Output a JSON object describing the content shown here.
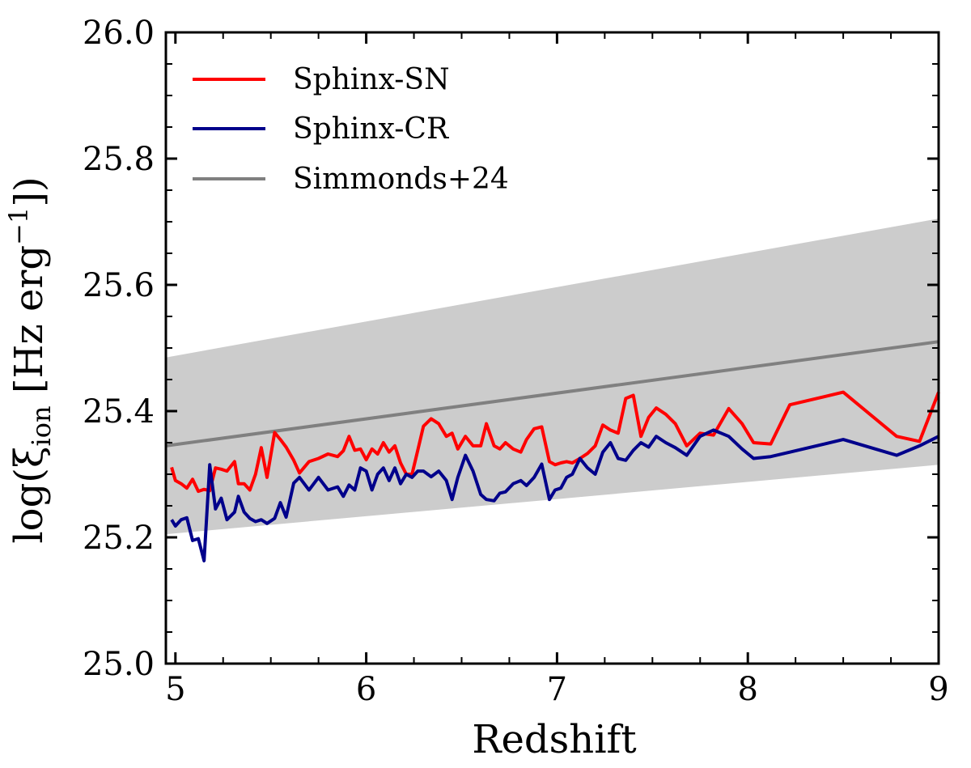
{
  "chart_data": {
    "type": "line",
    "xlabel": "Redshift",
    "ylabel": "log(ξion [Hz erg⁻¹])",
    "ylabel_parts": {
      "prefix": "log(ξ",
      "sub": "ion",
      "mid": " [Hz erg",
      "sup": "−1",
      "suffix": "])"
    },
    "xlim": [
      4.95,
      9.0
    ],
    "ylim": [
      25.0,
      26.0
    ],
    "xticks": [
      5,
      6,
      7,
      8,
      9
    ],
    "yticks": [
      25.0,
      25.2,
      25.4,
      25.6,
      25.8,
      26.0
    ],
    "xtick_labels": [
      "5",
      "6",
      "7",
      "8",
      "9"
    ],
    "ytick_labels": [
      "25.0",
      "25.2",
      "25.4",
      "25.6",
      "25.8",
      "26.0"
    ],
    "legend_position": "top-left",
    "series": [
      {
        "name": "Sphinx-SN",
        "color": "#ff0000",
        "x": [
          4.98,
          5.0,
          5.03,
          5.06,
          5.09,
          5.12,
          5.15,
          5.18,
          5.21,
          5.24,
          5.27,
          5.31,
          5.33,
          5.36,
          5.39,
          5.42,
          5.45,
          5.48,
          5.52,
          5.55,
          5.58,
          5.62,
          5.65,
          5.7,
          5.75,
          5.8,
          5.85,
          5.88,
          5.91,
          5.94,
          5.97,
          6.0,
          6.03,
          6.06,
          6.09,
          6.12,
          6.15,
          6.18,
          6.21,
          6.24,
          6.27,
          6.3,
          6.34,
          6.38,
          6.42,
          6.45,
          6.48,
          6.52,
          6.56,
          6.6,
          6.63,
          6.67,
          6.7,
          6.73,
          6.77,
          6.81,
          6.84,
          6.88,
          6.92,
          6.96,
          6.99,
          7.02,
          7.05,
          7.08,
          7.12,
          7.16,
          7.2,
          7.24,
          7.28,
          7.32,
          7.36,
          7.4,
          7.44,
          7.48,
          7.52,
          7.57,
          7.62,
          7.68,
          7.75,
          7.82,
          7.9,
          7.97,
          8.03,
          8.12,
          8.22,
          8.5,
          8.78,
          8.9,
          9.0
        ],
        "y": [
          25.311,
          25.29,
          25.285,
          25.278,
          25.292,
          25.273,
          25.276,
          25.274,
          25.31,
          25.308,
          25.305,
          25.32,
          25.285,
          25.285,
          25.275,
          25.3,
          25.342,
          25.295,
          25.366,
          25.355,
          25.343,
          25.322,
          25.302,
          25.32,
          25.325,
          25.332,
          25.328,
          25.337,
          25.36,
          25.338,
          25.34,
          25.323,
          25.34,
          25.332,
          25.35,
          25.335,
          25.345,
          25.318,
          25.3,
          25.3,
          25.338,
          25.376,
          25.388,
          25.38,
          25.36,
          25.365,
          25.34,
          25.36,
          25.345,
          25.345,
          25.38,
          25.345,
          25.34,
          25.35,
          25.34,
          25.335,
          25.355,
          25.372,
          25.375,
          25.32,
          25.315,
          25.318,
          25.32,
          25.318,
          25.325,
          25.333,
          25.345,
          25.378,
          25.37,
          25.365,
          25.42,
          25.425,
          25.36,
          25.39,
          25.405,
          25.395,
          25.38,
          25.345,
          25.365,
          25.362,
          25.404,
          25.38,
          25.35,
          25.348,
          25.41,
          25.43,
          25.36,
          25.352,
          25.43
        ]
      },
      {
        "name": "Sphinx-CR",
        "color": "#00008b",
        "x": [
          4.98,
          5.0,
          5.03,
          5.06,
          5.09,
          5.12,
          5.15,
          5.18,
          5.21,
          5.24,
          5.27,
          5.31,
          5.33,
          5.36,
          5.39,
          5.42,
          5.45,
          5.48,
          5.52,
          5.55,
          5.58,
          5.62,
          5.65,
          5.7,
          5.75,
          5.8,
          5.85,
          5.88,
          5.91,
          5.94,
          5.97,
          6.0,
          6.03,
          6.06,
          6.09,
          6.12,
          6.15,
          6.18,
          6.21,
          6.24,
          6.27,
          6.3,
          6.34,
          6.38,
          6.42,
          6.45,
          6.48,
          6.52,
          6.56,
          6.6,
          6.63,
          6.67,
          6.7,
          6.73,
          6.77,
          6.81,
          6.84,
          6.88,
          6.92,
          6.96,
          6.99,
          7.02,
          7.05,
          7.08,
          7.12,
          7.16,
          7.2,
          7.24,
          7.28,
          7.32,
          7.36,
          7.4,
          7.44,
          7.48,
          7.52,
          7.57,
          7.62,
          7.68,
          7.75,
          7.82,
          7.9,
          7.97,
          8.03,
          8.12,
          8.22,
          8.5,
          8.78,
          8.9,
          9.0
        ],
        "y": [
          25.228,
          25.218,
          25.228,
          25.231,
          25.195,
          25.198,
          25.163,
          25.315,
          25.245,
          25.262,
          25.228,
          25.24,
          25.265,
          25.24,
          25.23,
          25.225,
          25.228,
          25.222,
          25.23,
          25.255,
          25.232,
          25.286,
          25.295,
          25.275,
          25.295,
          25.275,
          25.28,
          25.265,
          25.283,
          25.275,
          25.31,
          25.305,
          25.275,
          25.3,
          25.31,
          25.29,
          25.31,
          25.285,
          25.3,
          25.295,
          25.305,
          25.305,
          25.296,
          25.305,
          25.29,
          25.26,
          25.295,
          25.33,
          25.305,
          25.268,
          25.26,
          25.258,
          25.27,
          25.272,
          25.285,
          25.29,
          25.282,
          25.295,
          25.316,
          25.26,
          25.275,
          25.278,
          25.295,
          25.3,
          25.325,
          25.31,
          25.3,
          25.335,
          25.35,
          25.325,
          25.322,
          25.338,
          25.35,
          25.343,
          25.36,
          25.35,
          25.342,
          25.33,
          25.36,
          25.37,
          25.36,
          25.34,
          25.325,
          25.328,
          25.335,
          25.355,
          25.33,
          25.345,
          25.36
        ]
      },
      {
        "name": "Simmonds+24",
        "color": "#808080",
        "x": [
          4.95,
          9.0
        ],
        "y": [
          25.345,
          25.51
        ],
        "band_upper": [
          25.485,
          25.705
        ],
        "band_lower": [
          25.205,
          25.315
        ],
        "band_color": "#cccccc"
      }
    ]
  }
}
